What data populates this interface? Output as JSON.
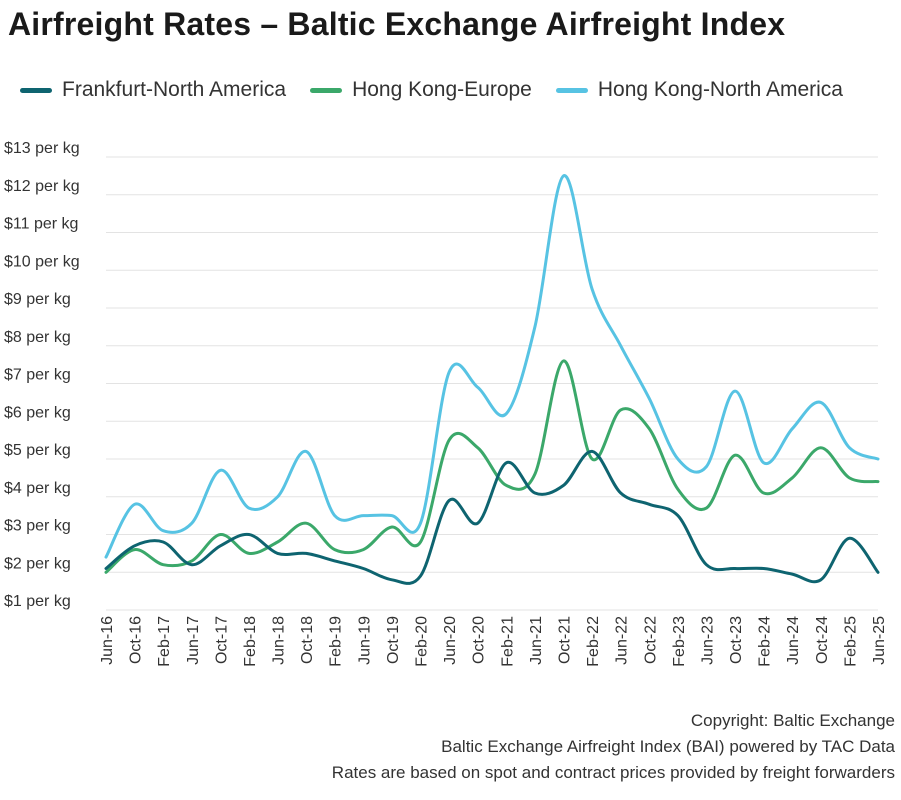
{
  "chart_data": {
    "type": "line",
    "title": "Airfreight Rates – Baltic Exchange Airfreight Index",
    "xlabel": "",
    "ylabel": "",
    "ylim": [
      1,
      13
    ],
    "y_ticks": [
      {
        "value": 13,
        "label": "$13 per kg"
      },
      {
        "value": 12,
        "label": "$12 per kg"
      },
      {
        "value": 11,
        "label": "$11 per kg"
      },
      {
        "value": 10,
        "label": "$10 per kg"
      },
      {
        "value": 9,
        "label": "$9 per kg"
      },
      {
        "value": 8,
        "label": "$8 per kg"
      },
      {
        "value": 7,
        "label": "$7 per kg"
      },
      {
        "value": 6,
        "label": "$6 per kg"
      },
      {
        "value": 5,
        "label": "$5 per kg"
      },
      {
        "value": 4,
        "label": "$4 per kg"
      },
      {
        "value": 3,
        "label": "$3 per kg"
      },
      {
        "value": 2,
        "label": "$2 per kg"
      },
      {
        "value": 1,
        "label": "$1 per kg"
      }
    ],
    "x_ticks": [
      "Jun-16",
      "Oct-16",
      "Feb-17",
      "Jun-17",
      "Oct-17",
      "Feb-18",
      "Jun-18",
      "Oct-18",
      "Feb-19",
      "Jun-19",
      "Oct-19",
      "Feb-20",
      "Jun-20",
      "Oct-20",
      "Feb-21",
      "Jun-21",
      "Oct-21",
      "Feb-22",
      "Jun-22",
      "Oct-22",
      "Feb-23",
      "Jun-23",
      "Oct-23",
      "Feb-24",
      "Jun-24",
      "Oct-24",
      "Feb-25",
      "Jun-25"
    ],
    "x": [
      "Jun-16",
      "Oct-16",
      "Feb-17",
      "Jun-17",
      "Oct-17",
      "Feb-18",
      "Jun-18",
      "Oct-18",
      "Feb-19",
      "Jun-19",
      "Oct-19",
      "Feb-20",
      "Jun-20",
      "Oct-20",
      "Feb-21",
      "Jun-21",
      "Oct-21",
      "Feb-22",
      "Jun-22",
      "Oct-22",
      "Feb-23",
      "Jun-23",
      "Oct-23",
      "Feb-24",
      "Jun-24",
      "Oct-24",
      "Feb-25",
      "Jun-25"
    ],
    "grid": true,
    "legend_position": "top",
    "series": [
      {
        "name": "Frankfurt-North America",
        "color": "#0e6470",
        "values": [
          2.1,
          2.7,
          2.8,
          2.2,
          2.7,
          3.0,
          2.5,
          2.5,
          2.3,
          2.1,
          1.8,
          1.9,
          3.9,
          3.3,
          4.9,
          4.1,
          4.3,
          5.2,
          4.1,
          3.8,
          3.5,
          2.2,
          2.1,
          2.1,
          1.95,
          1.8,
          2.9,
          2.0
        ]
      },
      {
        "name": "Hong Kong-Europe",
        "color": "#3ba86a",
        "values": [
          2.0,
          2.6,
          2.2,
          2.3,
          3.0,
          2.5,
          2.8,
          3.3,
          2.6,
          2.6,
          3.2,
          2.8,
          5.5,
          5.3,
          4.3,
          4.6,
          7.6,
          5.0,
          6.3,
          5.8,
          4.2,
          3.7,
          5.1,
          4.1,
          4.5,
          5.3,
          4.5,
          4.4
        ]
      },
      {
        "name": "Hong Kong-North America",
        "color": "#57c3e3",
        "values": [
          2.4,
          3.8,
          3.1,
          3.3,
          4.7,
          3.7,
          4.0,
          5.2,
          3.5,
          3.5,
          3.5,
          3.3,
          7.3,
          6.9,
          6.2,
          8.5,
          12.5,
          9.5,
          8.0,
          6.6,
          5.0,
          4.8,
          6.8,
          4.9,
          5.8,
          6.5,
          5.3,
          5.0
        ]
      }
    ]
  },
  "footer": {
    "line1": "Copyright: Baltic Exchange",
    "line2": "Baltic Exchange Airfreight Index (BAI) powered by TAC Data",
    "line3": "Rates are based on spot and contract prices provided by freight forwarders"
  }
}
